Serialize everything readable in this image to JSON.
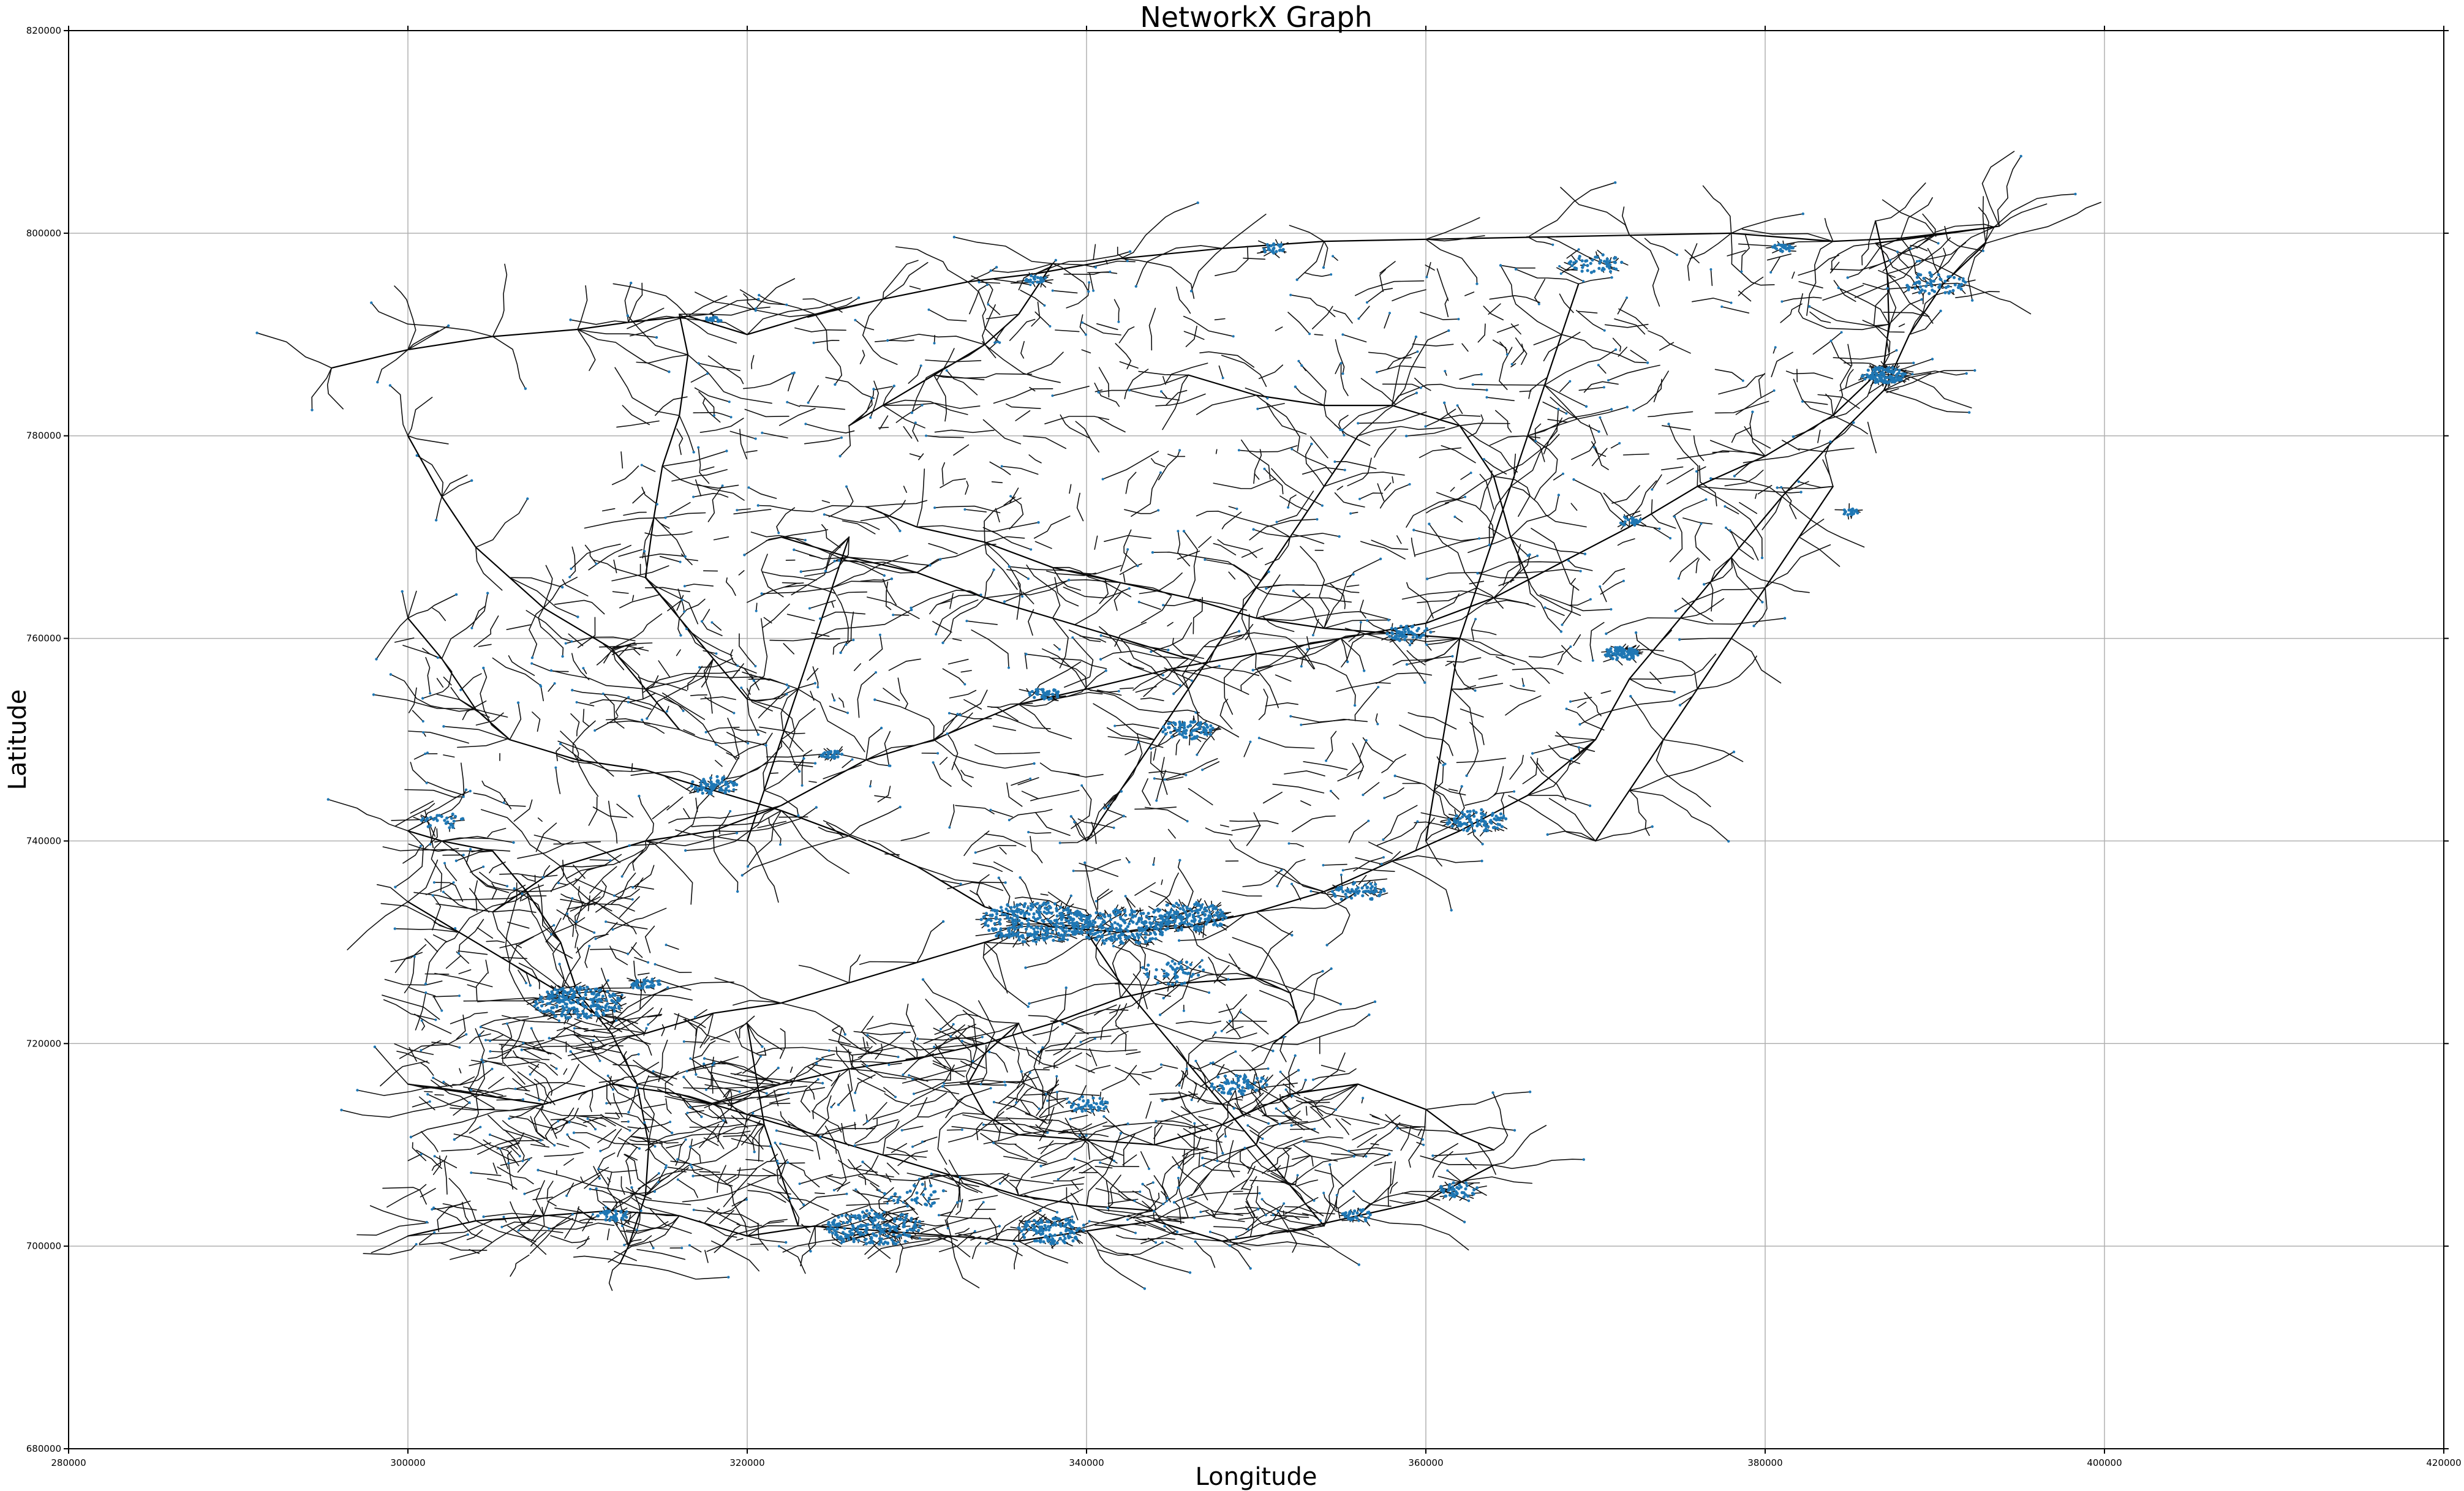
{
  "chart_data": {
    "type": "scatter",
    "title": "NetworkX Graph",
    "xlabel": "Longitude",
    "ylabel": "Latitude",
    "xlim": [
      280000,
      420000
    ],
    "ylim": [
      680000,
      820000
    ],
    "xticks": [
      280000,
      300000,
      320000,
      340000,
      360000,
      380000,
      400000,
      420000
    ],
    "yticks": [
      680000,
      700000,
      720000,
      740000,
      760000,
      780000,
      800000,
      820000
    ],
    "xtick_labels": [
      "280000",
      "300000",
      "320000",
      "340000",
      "360000",
      "380000",
      "400000",
      "420000"
    ],
    "ytick_labels": [
      "680000",
      "700000",
      "720000",
      "740000",
      "760000",
      "780000",
      "800000",
      "820000"
    ],
    "grid": true,
    "node_color": "#1f77b4",
    "edge_color": "#000000",
    "main_routes": [
      [
        [
          295500,
          786700
        ],
        [
          300000,
          788500
        ],
        [
          305000,
          789800
        ],
        [
          310000,
          790500
        ],
        [
          313000,
          791200
        ],
        [
          316500,
          791800
        ],
        [
          320000,
          790000
        ],
        [
          324000,
          792000
        ],
        [
          328000,
          793500
        ],
        [
          333000,
          795200
        ],
        [
          337000,
          796000
        ],
        [
          342000,
          797500
        ],
        [
          348000,
          798500
        ],
        [
          354000,
          799200
        ],
        [
          360000,
          799400
        ],
        [
          366000,
          799600
        ],
        [
          372000,
          799800
        ],
        [
          378000,
          800000
        ],
        [
          384000,
          799200
        ],
        [
          388000,
          799500
        ],
        [
          393500,
          800600
        ]
      ],
      [
        [
          300000,
          762000
        ],
        [
          302000,
          758000
        ],
        [
          304000,
          753000
        ],
        [
          306000,
          750000
        ],
        [
          310000,
          748000
        ],
        [
          314000,
          747000
        ],
        [
          318000,
          745000
        ],
        [
          322000,
          743000
        ],
        [
          326000,
          740500
        ],
        [
          330000,
          737500
        ],
        [
          334000,
          733500
        ],
        [
          338000,
          731500
        ],
        [
          342000,
          731000
        ],
        [
          346000,
          731500
        ],
        [
          350000,
          733000
        ],
        [
          354000,
          735000
        ],
        [
          358000,
          738000
        ],
        [
          362000,
          741000
        ],
        [
          366000,
          744500
        ],
        [
          370000,
          750000
        ],
        [
          372000,
          756000
        ],
        [
          375000,
          762000
        ],
        [
          378000,
          768000
        ],
        [
          381000,
          774000
        ],
        [
          384000,
          779500
        ],
        [
          387000,
          784500
        ],
        [
          388500,
          790000
        ],
        [
          390500,
          795000
        ],
        [
          393000,
          799000
        ]
      ],
      [
        [
          300000,
          741000
        ],
        [
          302000,
          740000
        ],
        [
          305000,
          739000
        ],
        [
          307000,
          735000
        ],
        [
          309000,
          730000
        ],
        [
          310000,
          725000
        ],
        [
          312000,
          721000
        ],
        [
          313500,
          716000
        ],
        [
          314200,
          710000
        ],
        [
          314000,
          705000
        ],
        [
          313000,
          700000
        ],
        [
          312500,
          698300
        ]
      ],
      [
        [
          305000,
          733000
        ],
        [
          309000,
          737500
        ],
        [
          314000,
          740000
        ],
        [
          318000,
          741000
        ],
        [
          322000,
          743500
        ],
        [
          327000,
          748000
        ],
        [
          331000,
          750000
        ],
        [
          336000,
          753500
        ],
        [
          340000,
          755000
        ],
        [
          345000,
          757000
        ],
        [
          350000,
          758500
        ],
        [
          355000,
          760000
        ],
        [
          360000,
          761500
        ],
        [
          364000,
          764000
        ],
        [
          368000,
          767500
        ],
        [
          372000,
          771000
        ],
        [
          376000,
          775000
        ],
        [
          380000,
          778000
        ],
        [
          384000,
          782000
        ],
        [
          386500,
          786000
        ]
      ],
      [
        [
          314000,
          721000
        ],
        [
          318000,
          723000
        ],
        [
          322000,
          724000
        ],
        [
          326000,
          726000
        ],
        [
          330000,
          728000
        ],
        [
          334000,
          730000
        ],
        [
          336000,
          731000
        ]
      ],
      [
        [
          318000,
          714000
        ],
        [
          322000,
          716000
        ],
        [
          326000,
          717500
        ],
        [
          330000,
          718500
        ],
        [
          334000,
          720000
        ],
        [
          338000,
          722000
        ],
        [
          342000,
          724500
        ],
        [
          346000,
          726000
        ],
        [
          350000,
          726500
        ],
        [
          352000,
          725000
        ],
        [
          352500,
          722000
        ],
        [
          351000,
          720000
        ]
      ],
      [
        [
          336000,
          722000
        ],
        [
          334000,
          719000
        ],
        [
          333000,
          716000
        ],
        [
          334000,
          713000
        ],
        [
          336000,
          711000
        ],
        [
          340000,
          710500
        ],
        [
          344000,
          710000
        ],
        [
          348000,
          712000
        ],
        [
          352000,
          715000
        ],
        [
          356000,
          716000
        ],
        [
          360000,
          713500
        ],
        [
          362000,
          711000
        ],
        [
          364000,
          709500
        ]
      ],
      [
        [
          300000,
          701000
        ],
        [
          304000,
          702500
        ],
        [
          308000,
          703000
        ],
        [
          312000,
          703500
        ],
        [
          316000,
          703000
        ],
        [
          320000,
          701000
        ],
        [
          324000,
          702000
        ],
        [
          328000,
          701500
        ],
        [
          332000,
          701000
        ],
        [
          336000,
          700500
        ],
        [
          340000,
          701500
        ],
        [
          344000,
          702500
        ],
        [
          348000,
          700500
        ],
        [
          352000,
          701500
        ],
        [
          356000,
          703000
        ],
        [
          360000,
          704500
        ],
        [
          364000,
          708000
        ]
      ],
      [
        [
          300000,
          780000
        ],
        [
          302000,
          774000
        ],
        [
          304000,
          769000
        ],
        [
          306000,
          766000
        ],
        [
          308000,
          763000
        ],
        [
          312000,
          759000
        ],
        [
          314000,
          755000
        ],
        [
          316000,
          751000
        ]
      ],
      [
        [
          316000,
          792000
        ],
        [
          316500,
          788000
        ],
        [
          316000,
          782000
        ],
        [
          315000,
          777000
        ],
        [
          314500,
          772000
        ],
        [
          314000,
          766000
        ],
        [
          316000,
          762000
        ],
        [
          318000,
          758000
        ],
        [
          320000,
          754000
        ]
      ],
      [
        [
          338000,
          797000
        ],
        [
          336000,
          792000
        ],
        [
          334000,
          789000
        ],
        [
          331000,
          786000
        ],
        [
          328000,
          783000
        ],
        [
          326000,
          781000
        ]
      ],
      [
        [
          346000,
          786000
        ],
        [
          350000,
          784000
        ],
        [
          354000,
          783000
        ],
        [
          358000,
          783000
        ],
        [
          362000,
          781000
        ],
        [
          364000,
          776000
        ],
        [
          365000,
          770000
        ],
        [
          366000,
          766000
        ]
      ],
      [
        [
          386500,
          801200
        ],
        [
          387200,
          796000
        ],
        [
          387300,
          791000
        ],
        [
          387000,
          787000
        ]
      ],
      [
        [
          386500,
          799000
        ],
        [
          390000,
          799800
        ],
        [
          393800,
          800700
        ]
      ],
      [
        [
          322000,
          770000
        ],
        [
          326000,
          768000
        ],
        [
          330000,
          766500
        ],
        [
          334000,
          764000
        ],
        [
          338000,
          762000
        ],
        [
          342000,
          760000
        ],
        [
          346000,
          758000
        ]
      ],
      [
        [
          327000,
          773000
        ],
        [
          330000,
          771000
        ],
        [
          334000,
          769500
        ],
        [
          338000,
          767000
        ],
        [
          342000,
          765500
        ],
        [
          346000,
          764000
        ],
        [
          350000,
          762000
        ],
        [
          354000,
          761000
        ],
        [
          358000,
          760500
        ],
        [
          362000,
          760000
        ]
      ],
      [
        [
          360000,
          740000
        ],
        [
          360500,
          745000
        ],
        [
          361000,
          750000
        ],
        [
          361500,
          755000
        ],
        [
          362000,
          760000
        ],
        [
          363000,
          765000
        ],
        [
          364000,
          770000
        ],
        [
          365000,
          775000
        ],
        [
          366000,
          780000
        ],
        [
          367000,
          785000
        ],
        [
          368000,
          790000
        ],
        [
          369000,
          795000
        ]
      ],
      [
        [
          370000,
          740000
        ],
        [
          372000,
          745000
        ],
        [
          374000,
          750000
        ],
        [
          376000,
          755000
        ],
        [
          378000,
          760000
        ],
        [
          380000,
          765000
        ],
        [
          382000,
          770000
        ],
        [
          384000,
          775000
        ]
      ],
      [
        [
          340000,
          740000
        ],
        [
          342000,
          745000
        ],
        [
          344000,
          750000
        ],
        [
          346000,
          755000
        ],
        [
          348000,
          760000
        ],
        [
          350000,
          765000
        ],
        [
          352000,
          770000
        ],
        [
          354000,
          775000
        ],
        [
          356000,
          780000
        ]
      ],
      [
        [
          320000,
          740000
        ],
        [
          321000,
          745000
        ],
        [
          322000,
          750000
        ],
        [
          323000,
          755000
        ],
        [
          324000,
          760000
        ],
        [
          325000,
          765000
        ],
        [
          326000,
          770000
        ]
      ],
      [
        [
          340000,
          731000
        ],
        [
          342000,
          726000
        ],
        [
          344000,
          722000
        ],
        [
          346000,
          718000
        ],
        [
          348000,
          714000
        ],
        [
          350000,
          710000
        ],
        [
          352000,
          706000
        ],
        [
          354000,
          702000
        ]
      ],
      [
        [
          320000,
          722000
        ],
        [
          320500,
          717000
        ],
        [
          321000,
          712000
        ],
        [
          322000,
          707000
        ],
        [
          323000,
          702000
        ]
      ],
      [
        [
          300000,
          734000
        ],
        [
          303000,
          731000
        ],
        [
          306000,
          728000
        ],
        [
          309000,
          725000
        ],
        [
          312000,
          722000
        ]
      ],
      [
        [
          300000,
          716000
        ],
        [
          304000,
          715000
        ],
        [
          308000,
          714000
        ],
        [
          312000,
          716000
        ],
        [
          316000,
          715000
        ],
        [
          320000,
          713000
        ],
        [
          324000,
          711000
        ],
        [
          328000,
          709000
        ],
        [
          332000,
          707000
        ],
        [
          336000,
          705000
        ],
        [
          340000,
          704000
        ],
        [
          344000,
          703500
        ]
      ]
    ],
    "node_clusters": [
      {
        "x": 310000,
        "y": 724000,
        "spread": 2000,
        "count": 220
      },
      {
        "x": 337000,
        "y": 732000,
        "spread": 2500,
        "count": 320
      },
      {
        "x": 342000,
        "y": 731500,
        "spread": 2200,
        "count": 220
      },
      {
        "x": 346000,
        "y": 732500,
        "spread": 1800,
        "count": 160
      },
      {
        "x": 327500,
        "y": 701800,
        "spread": 2200,
        "count": 200
      },
      {
        "x": 338000,
        "y": 701500,
        "spread": 1600,
        "count": 120
      },
      {
        "x": 387000,
        "y": 786000,
        "spread": 1000,
        "count": 110
      },
      {
        "x": 371500,
        "y": 758500,
        "spread": 800,
        "count": 80
      },
      {
        "x": 363000,
        "y": 742000,
        "spread": 1400,
        "count": 90
      },
      {
        "x": 318000,
        "y": 745500,
        "spread": 1100,
        "count": 70
      },
      {
        "x": 346000,
        "y": 751000,
        "spread": 1200,
        "count": 80
      },
      {
        "x": 359000,
        "y": 760500,
        "spread": 1000,
        "count": 60
      },
      {
        "x": 356000,
        "y": 735000,
        "spread": 1200,
        "count": 60
      },
      {
        "x": 349000,
        "y": 716000,
        "spread": 1300,
        "count": 70
      },
      {
        "x": 340000,
        "y": 714000,
        "spread": 1000,
        "count": 40
      },
      {
        "x": 314000,
        "y": 726000,
        "spread": 700,
        "count": 40
      },
      {
        "x": 312000,
        "y": 703000,
        "spread": 700,
        "count": 40
      },
      {
        "x": 370000,
        "y": 797000,
        "spread": 1200,
        "count": 50
      },
      {
        "x": 390000,
        "y": 795000,
        "spread": 1400,
        "count": 60
      },
      {
        "x": 337000,
        "y": 795500,
        "spread": 500,
        "count": 25
      },
      {
        "x": 351000,
        "y": 798500,
        "spread": 600,
        "count": 25
      },
      {
        "x": 381000,
        "y": 798500,
        "spread": 500,
        "count": 25
      },
      {
        "x": 372000,
        "y": 771500,
        "spread": 600,
        "count": 25
      },
      {
        "x": 385000,
        "y": 772500,
        "spread": 400,
        "count": 20
      },
      {
        "x": 337500,
        "y": 754500,
        "spread": 700,
        "count": 40
      },
      {
        "x": 325000,
        "y": 748500,
        "spread": 500,
        "count": 25
      },
      {
        "x": 302000,
        "y": 742000,
        "spread": 1000,
        "count": 30
      },
      {
        "x": 345000,
        "y": 727000,
        "spread": 1500,
        "count": 50
      },
      {
        "x": 362000,
        "y": 705500,
        "spread": 1000,
        "count": 40
      },
      {
        "x": 356000,
        "y": 703000,
        "spread": 800,
        "count": 30
      },
      {
        "x": 318000,
        "y": 791500,
        "spread": 400,
        "count": 15
      },
      {
        "x": 330000,
        "y": 705000,
        "spread": 1500,
        "count": 35
      }
    ]
  }
}
